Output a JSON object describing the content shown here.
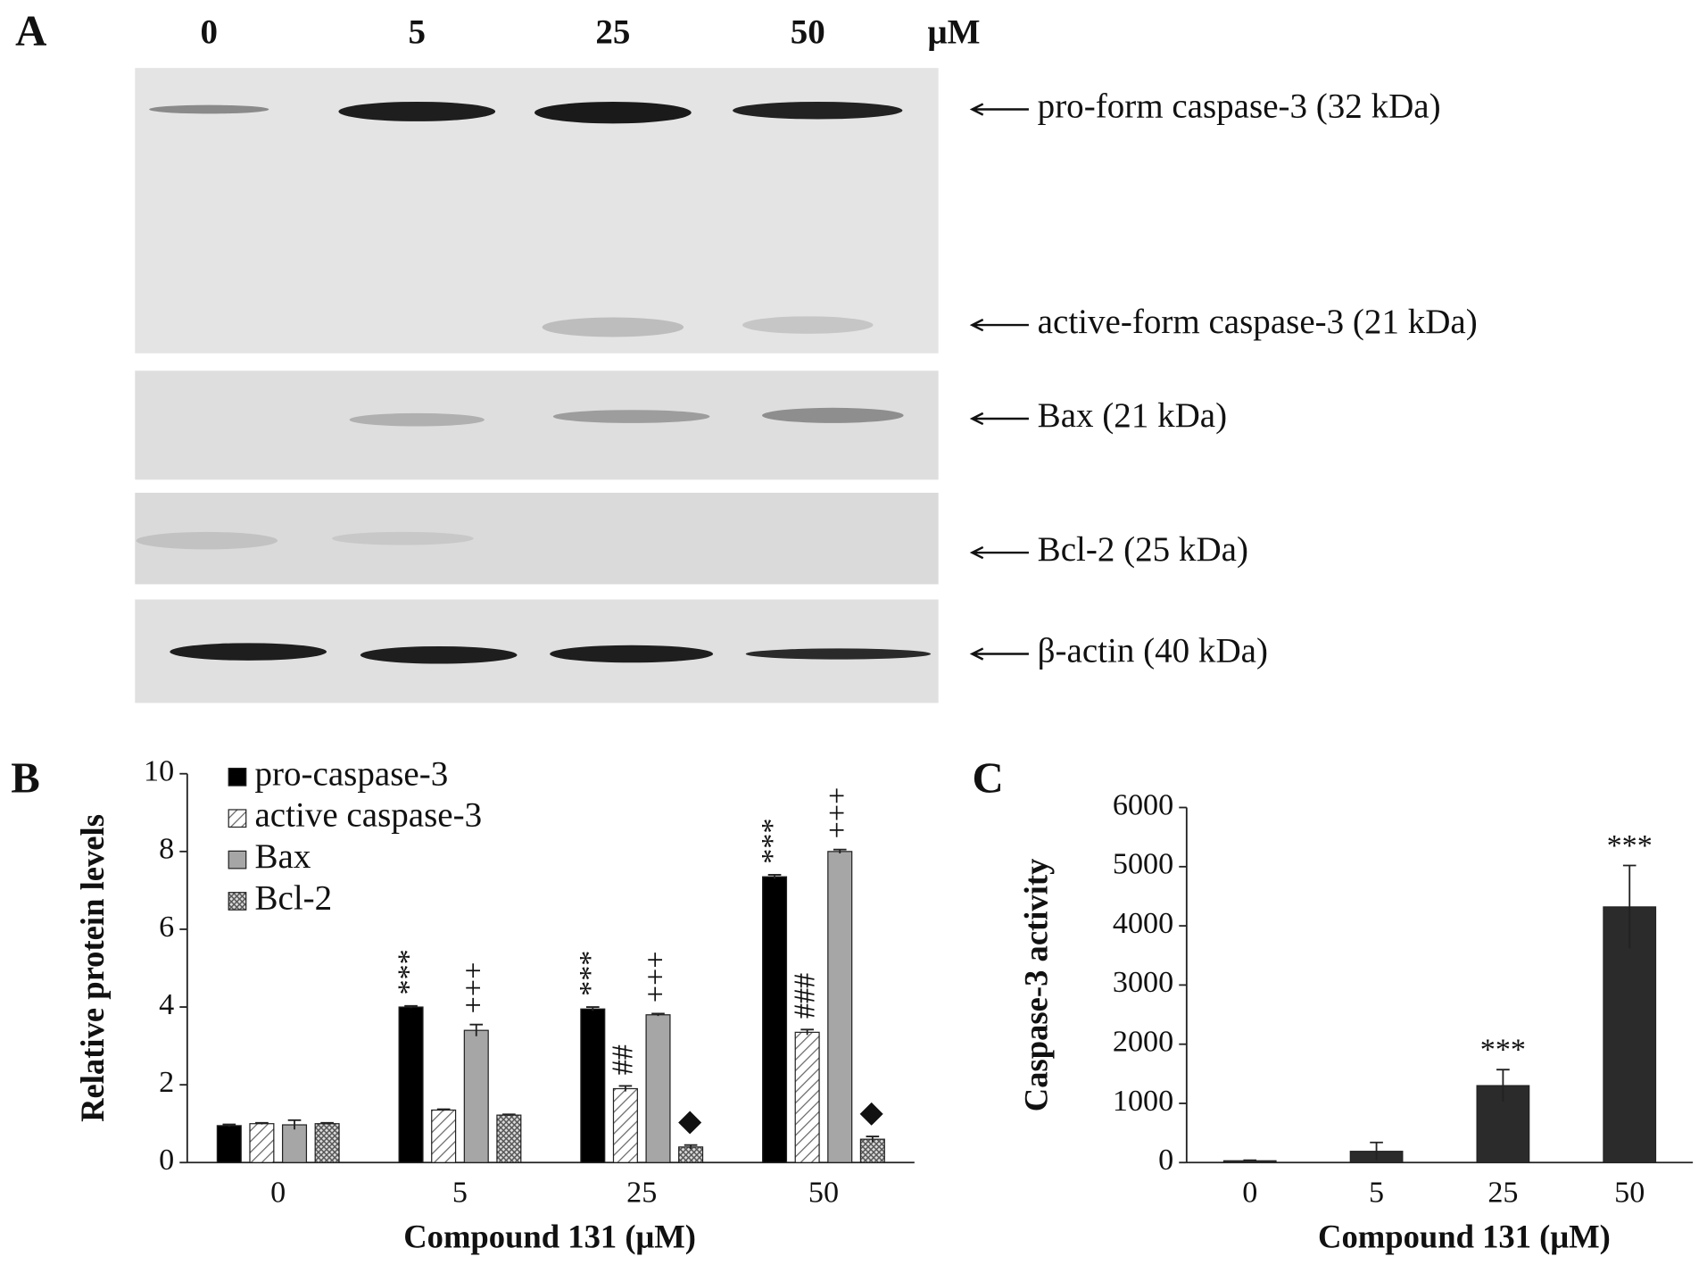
{
  "panel_a": {
    "label": "A",
    "lanes": [
      "0",
      "5",
      "25",
      "50"
    ],
    "unit": "μM",
    "bands": [
      "pro-form caspase-3 (32 kDa)",
      "active-form caspase-3 (21 kDa)",
      "Bax (21 kDa)",
      "Bcl-2 (25 kDa)",
      "β-actin (40 kDa)"
    ]
  },
  "chart_data": [
    {
      "type": "bar",
      "panel": "B",
      "x_label": "Compound 131 (μM)",
      "y_label": "Relative protein levels",
      "categories": [
        "0",
        "5",
        "25",
        "50"
      ],
      "ylim": [
        0,
        10
      ],
      "yticks": [
        0,
        2,
        4,
        6,
        8,
        10
      ],
      "series": [
        {
          "name": "pro-caspase-3",
          "color": "#000000",
          "fill": "solid",
          "values": [
            0.95,
            4.0,
            3.95,
            7.35
          ],
          "errors": [
            0.03,
            0.03,
            0.05,
            0.05
          ],
          "significance": [
            null,
            "***",
            "***",
            "***"
          ]
        },
        {
          "name": "active caspase-3",
          "color": "#666666",
          "fill": "hatch",
          "values": [
            1.0,
            1.35,
            1.9,
            3.35
          ],
          "errors": [
            0.02,
            0.02,
            0.07,
            0.07
          ],
          "significance": [
            null,
            null,
            "##",
            "###"
          ]
        },
        {
          "name": "Bax",
          "color": "#a6a6a6",
          "fill": "solid",
          "values": [
            0.97,
            3.4,
            3.8,
            8.0
          ],
          "errors": [
            0.12,
            0.15,
            0.03,
            0.05
          ],
          "significance": [
            null,
            "+++",
            "+++",
            "+++"
          ]
        },
        {
          "name": "Bcl-2",
          "color": "#555555",
          "fill": "crosshatch",
          "values": [
            1.0,
            1.22,
            0.4,
            0.6
          ],
          "errors": [
            0.02,
            0.02,
            0.05,
            0.07
          ],
          "significance": [
            null,
            null,
            "◆",
            "◆"
          ]
        }
      ]
    },
    {
      "type": "bar",
      "panel": "C",
      "x_label": "Compound 131 (μM)",
      "y_label": "Caspase-3 activity",
      "categories": [
        "0",
        "5",
        "25",
        "50"
      ],
      "ylim": [
        0,
        6000
      ],
      "yticks": [
        0,
        1000,
        2000,
        3000,
        4000,
        5000,
        6000
      ],
      "series": [
        {
          "color": "#2b2b2b",
          "fill": "solid",
          "values": [
            30,
            190,
            1300,
            4320
          ],
          "errors": [
            10,
            150,
            270,
            700
          ],
          "significance": [
            null,
            null,
            "***",
            "***"
          ]
        }
      ]
    }
  ]
}
